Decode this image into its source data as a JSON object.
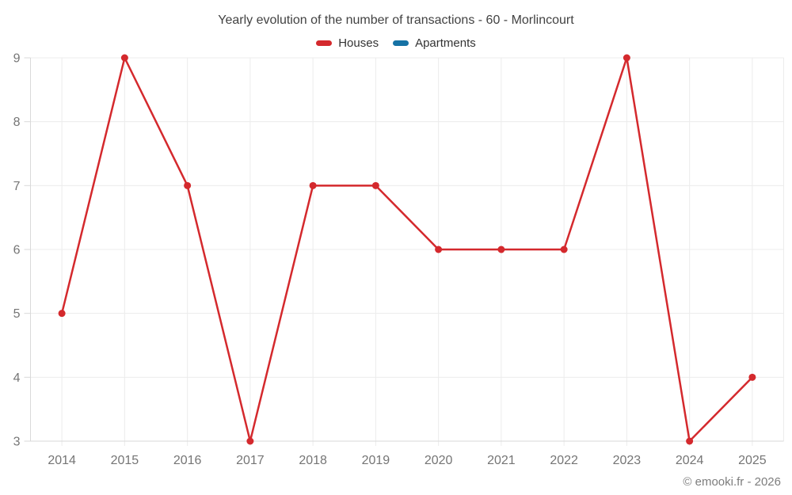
{
  "chart_data": {
    "type": "line",
    "title": "Yearly evolution of the number of transactions - 60 - Morlincourt",
    "categories": [
      "2014",
      "2015",
      "2016",
      "2017",
      "2018",
      "2019",
      "2020",
      "2021",
      "2022",
      "2023",
      "2024",
      "2025"
    ],
    "series": [
      {
        "name": "Houses",
        "color": "#d4292d",
        "values": [
          5,
          9,
          7,
          3,
          7,
          7,
          6,
          6,
          6,
          9,
          3,
          4
        ]
      },
      {
        "name": "Apartments",
        "color": "#1672a5",
        "values": []
      }
    ],
    "xlabel": "",
    "ylabel": "",
    "ylim": [
      3,
      9
    ],
    "y_ticks": [
      3,
      4,
      5,
      6,
      7,
      8,
      9
    ],
    "grid": true,
    "legend_position": "top",
    "marker": "circle",
    "colors": {
      "grid_line": "#ececec",
      "axis_line": "#d9d9d9",
      "tick_label": "#757575"
    }
  },
  "footer": {
    "watermark": "© emooki.fr - 2026"
  }
}
